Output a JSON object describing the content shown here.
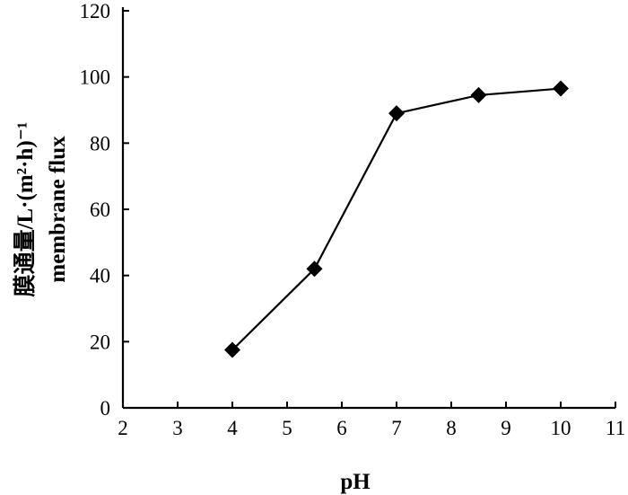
{
  "chart_data": {
    "type": "line",
    "title": "",
    "xlabel": "pH",
    "ylabel_lines": [
      "膜通量/L·(m²·h)⁻¹",
      "membrane flux"
    ],
    "xlim": [
      2,
      11
    ],
    "ylim": [
      0,
      120
    ],
    "x_ticks": [
      2,
      3,
      4,
      5,
      6,
      7,
      8,
      9,
      10,
      11
    ],
    "y_ticks": [
      0,
      20,
      40,
      60,
      80,
      100,
      120
    ],
    "grid": false,
    "legend": "none",
    "marker": "diamond",
    "series": [
      {
        "x": [
          4,
          5.5,
          7,
          8.5,
          10
        ],
        "y": [
          17.5,
          42,
          89,
          94.5,
          96.5
        ]
      }
    ]
  }
}
